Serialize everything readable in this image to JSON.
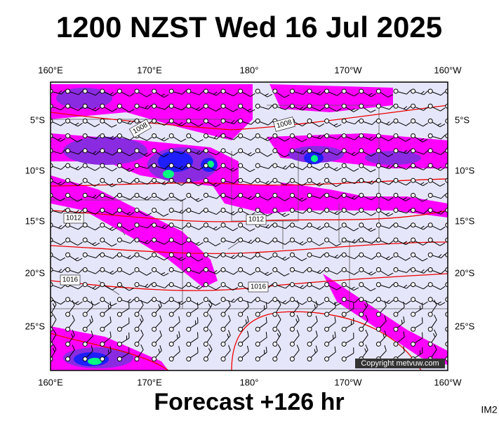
{
  "title": "1200 NZST Wed 16 Jul 2025",
  "lon_labels": [
    "160°E",
    "170°E",
    "180°",
    "170°W",
    "160°W"
  ],
  "lat_labels": [
    "5°S",
    "10°S",
    "15°S",
    "20°S",
    "25°S"
  ],
  "isobar_labels": [
    "1008",
    "1008",
    "1012",
    "1012",
    "1016",
    "1016"
  ],
  "copyright": "Copyright metvuw.com",
  "footer": "Forecast +126 hr",
  "corner_label": "IM2"
}
